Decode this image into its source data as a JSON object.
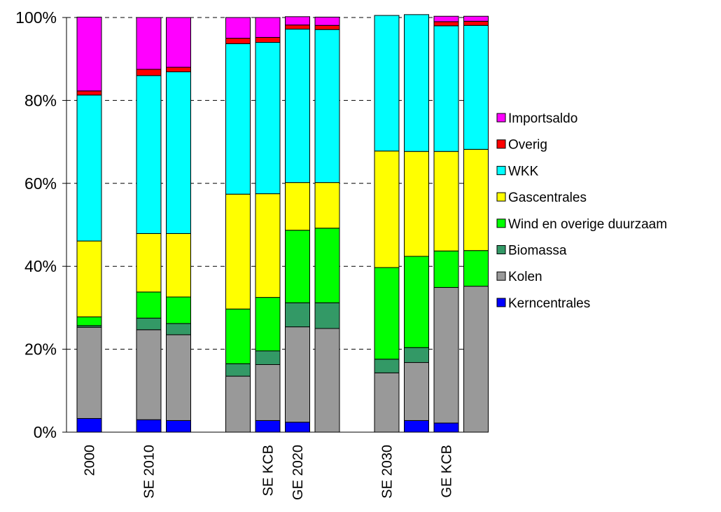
{
  "chart_data": {
    "type": "bar",
    "stacked": true,
    "percent": true,
    "title": "",
    "xlabel": "",
    "ylabel": "",
    "ylim": [
      0,
      100
    ],
    "y_ticks": [
      "0%",
      "20%",
      "40%",
      "60%",
      "80%",
      "100%"
    ],
    "grid": "horizontal dashed",
    "legend_position": "right",
    "categories": [
      "2000",
      "SE 2010",
      "",
      "",
      "SE KCB",
      "GE 2020",
      "",
      "SE 2030",
      "",
      "GE KCB",
      ""
    ],
    "category_gaps_after": [
      0,
      2,
      6
    ],
    "series": [
      {
        "name": "Kerncentrales",
        "color": "#0000ff",
        "values": [
          3.3,
          3.0,
          2.8,
          0,
          2.8,
          2.4,
          0,
          0,
          2.8,
          2.2,
          0
        ]
      },
      {
        "name": "Kolen",
        "color": "#999999",
        "values": [
          22,
          21.7,
          20.7,
          13.5,
          13.5,
          23,
          25,
          14.3,
          14.0,
          32.7,
          35.2
        ]
      },
      {
        "name": "Biomassa",
        "color": "#339966",
        "values": [
          0.4,
          2.8,
          2.7,
          3.0,
          3.3,
          5.8,
          6.2,
          3.3,
          3.6,
          0,
          0
        ]
      },
      {
        "name": "Wind en overige duurzaam",
        "color": "#00ff00",
        "values": [
          2.1,
          6.3,
          6.4,
          13.2,
          12.9,
          17.5,
          18.0,
          22.1,
          22.0,
          8.8,
          8.6
        ]
      },
      {
        "name": "Gascentrales",
        "color": "#ffff00",
        "values": [
          18.3,
          14.1,
          15.3,
          27.7,
          25.0,
          11.5,
          11.0,
          28.1,
          25.3,
          24.0,
          24.4
        ]
      },
      {
        "name": "WKK",
        "color": "#00ffff",
        "values": [
          35.2,
          38.1,
          39.0,
          36.3,
          36.5,
          37.0,
          36.9,
          32.7,
          33.0,
          30.3,
          29.9
        ]
      },
      {
        "name": "Overig",
        "color": "#ff0000",
        "values": [
          1.0,
          1.5,
          1.1,
          1.3,
          1.2,
          1.0,
          1.0,
          0,
          0,
          1.0,
          1.0
        ]
      },
      {
        "name": "Importsaldo",
        "color": "#ff00ff",
        "values": [
          17.8,
          12.5,
          12.0,
          5.0,
          4.8,
          2.0,
          2.0,
          0,
          0,
          1.3,
          1.2
        ]
      }
    ]
  }
}
